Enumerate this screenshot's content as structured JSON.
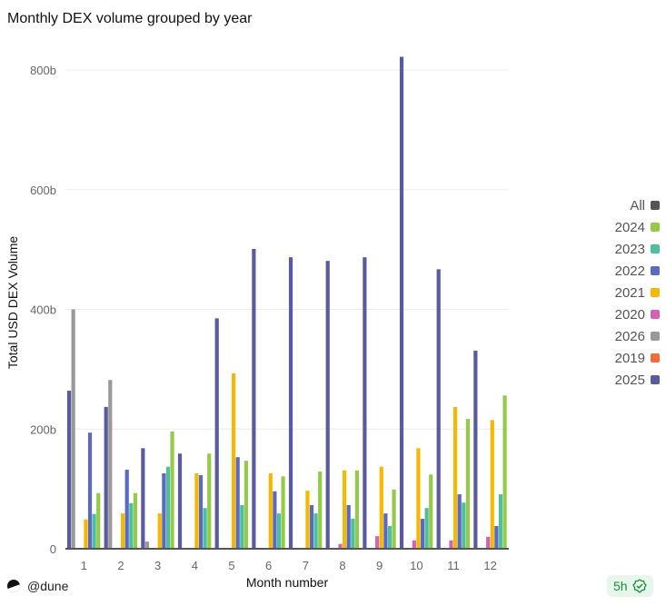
{
  "chart_data": {
    "type": "bar",
    "title": "Monthly DEX volume grouped by year",
    "xlabel": "Month number",
    "ylabel": "Total USD DEX Volume",
    "ylim": [
      0,
      800
    ],
    "yticks": [
      "0",
      "200b",
      "400b",
      "600b",
      "800b"
    ],
    "grid": true,
    "legend_position": "right",
    "categories": [
      "1",
      "2",
      "3",
      "4",
      "5",
      "6",
      "7",
      "8",
      "9",
      "10",
      "11",
      "12"
    ],
    "legend": [
      {
        "name": "All",
        "color": "#555555"
      },
      {
        "name": "2024",
        "color": "#95c94a"
      },
      {
        "name": "2023",
        "color": "#4dbf9f"
      },
      {
        "name": "2022",
        "color": "#5b6abf"
      },
      {
        "name": "2021",
        "color": "#f5b800"
      },
      {
        "name": "2020",
        "color": "#d462b4"
      },
      {
        "name": "2026",
        "color": "#999999"
      },
      {
        "name": "2019",
        "color": "#f26b3a"
      },
      {
        "name": "2025",
        "color": "#5a5a9e"
      }
    ],
    "series": [
      {
        "name": "2025",
        "color": "#5a5a9e",
        "values": [
          264,
          237,
          168,
          159,
          385,
          501,
          487,
          481,
          487,
          822,
          467,
          331
        ]
      },
      {
        "name": "2026",
        "color": "#999999",
        "values": [
          400,
          282,
          12,
          0,
          0,
          0,
          0,
          0,
          0,
          0,
          0,
          0
        ]
      },
      {
        "name": "2019",
        "color": "#f26b3a",
        "values": [
          0,
          0,
          0,
          0,
          0,
          0,
          0,
          0,
          0,
          0,
          0,
          0
        ]
      },
      {
        "name": "2020",
        "color": "#d462b4",
        "values": [
          0,
          0,
          0,
          0,
          0,
          0,
          1,
          8,
          21,
          14,
          14,
          20
        ]
      },
      {
        "name": "2021",
        "color": "#f5b800",
        "values": [
          49,
          59,
          59,
          126,
          293,
          126,
          97,
          131,
          137,
          168,
          237,
          215
        ]
      },
      {
        "name": "2022",
        "color": "#5b6abf",
        "values": [
          194,
          132,
          126,
          123,
          153,
          96,
          73,
          73,
          59,
          50,
          91,
          38
        ]
      },
      {
        "name": "2023",
        "color": "#4dbf9f",
        "values": [
          58,
          76,
          137,
          68,
          73,
          59,
          59,
          50,
          38,
          68,
          77,
          91
        ]
      },
      {
        "name": "2024",
        "color": "#95c94a",
        "values": [
          93,
          93,
          196,
          159,
          147,
          121,
          129,
          131,
          99,
          124,
          217,
          256
        ]
      }
    ]
  },
  "footer": {
    "brand": "@dune",
    "freshness": "5h",
    "freshness_icon": "check-circle-icon"
  }
}
